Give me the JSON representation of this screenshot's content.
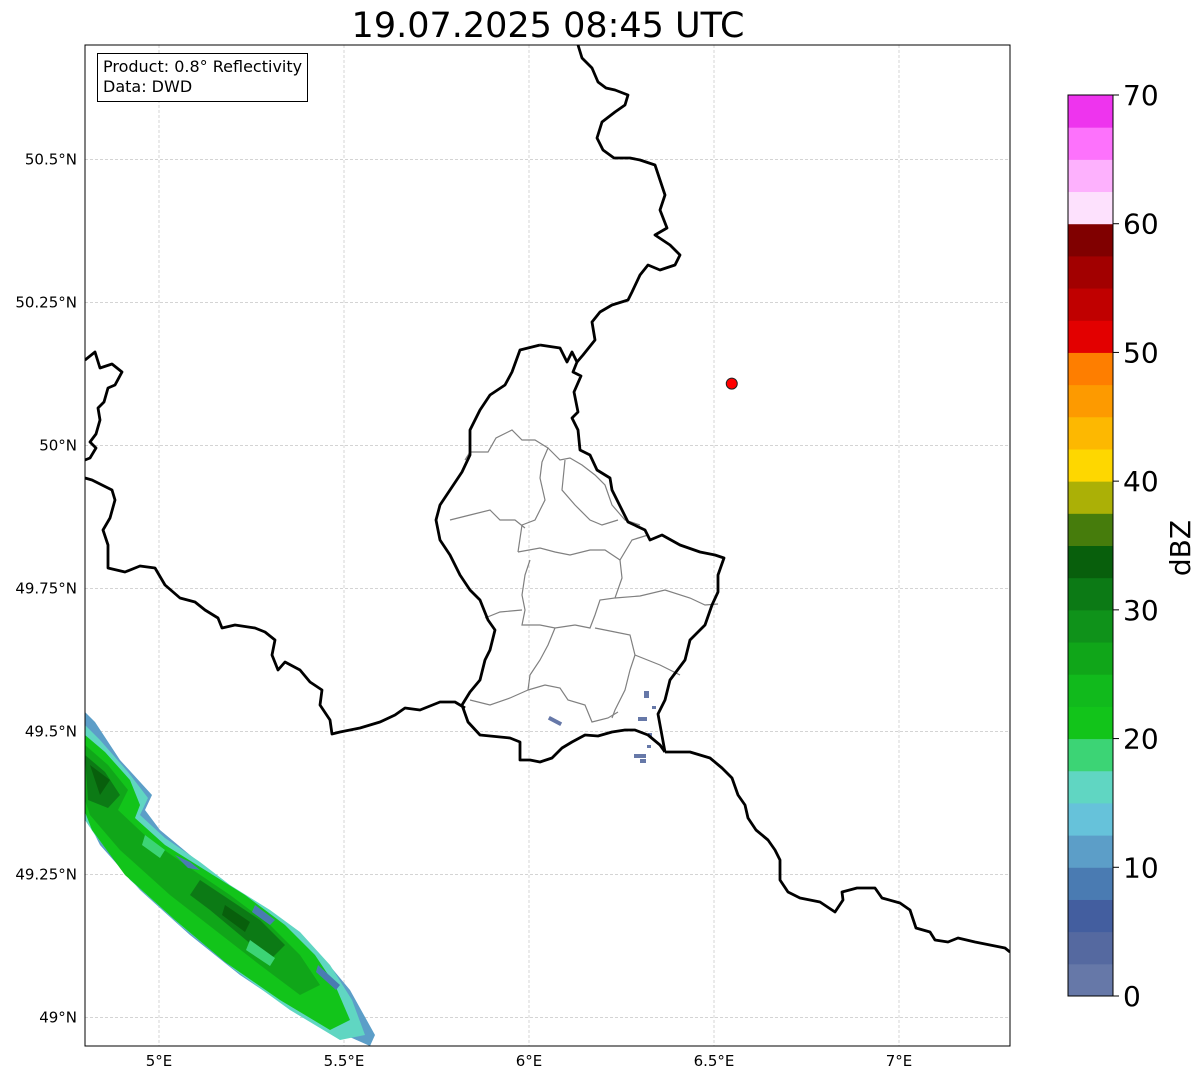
{
  "title": "19.07.2025 08:45 UTC",
  "info_box": {
    "product": "Product: 0.8° Reflectivity",
    "source": "Data: DWD"
  },
  "map": {
    "extent": {
      "lon_min": 4.8,
      "lon_max": 7.3,
      "lat_min": 48.95,
      "lat_max": 50.7
    },
    "lat_ticks": [
      {
        "value": 49.0,
        "label": "49°N"
      },
      {
        "value": 49.25,
        "label": "49.25°N"
      },
      {
        "value": 49.5,
        "label": "49.5°N"
      },
      {
        "value": 49.75,
        "label": "49.75°N"
      },
      {
        "value": 50.0,
        "label": "50°N"
      },
      {
        "value": 50.25,
        "label": "50.25°N"
      },
      {
        "value": 50.5,
        "label": "50.5°N"
      }
    ],
    "lon_ticks": [
      {
        "value": 5.0,
        "label": "5°E"
      },
      {
        "value": 5.5,
        "label": "5.5°E"
      },
      {
        "value": 6.0,
        "label": "6°E"
      },
      {
        "value": 6.5,
        "label": "6.5°E"
      },
      {
        "value": 7.0,
        "label": "7°E"
      }
    ],
    "gridlines": true,
    "marker": {
      "lon": 6.548,
      "lat": 50.108,
      "color": "#ff0000",
      "shape": "circle"
    }
  },
  "colorbar": {
    "label": "dBZ",
    "min": 0,
    "max": 70,
    "step": 2.5,
    "tick_values": [
      0,
      10,
      20,
      30,
      40,
      50,
      60,
      70
    ],
    "tick_labels": [
      "0",
      "10",
      "20",
      "30",
      "40",
      "50",
      "60",
      "70"
    ],
    "colors": [
      "#6678a8",
      "#5569a0",
      "#435e9f",
      "#4a7bb2",
      "#5c9ec8",
      "#66c2da",
      "#60d6c2",
      "#3cd475",
      "#12c41a",
      "#11ba1c",
      "#10a619",
      "#0f921a",
      "#0c7a15",
      "#085f0c",
      "#467c0c",
      "#abb006",
      "#fed700",
      "#fdb801",
      "#fd9a00",
      "#fe7e00",
      "#e30000",
      "#c00000",
      "#a20000",
      "#800000",
      "#fde1fd",
      "#fdb1fd",
      "#fd72fc",
      "#ee34ee"
    ]
  }
}
